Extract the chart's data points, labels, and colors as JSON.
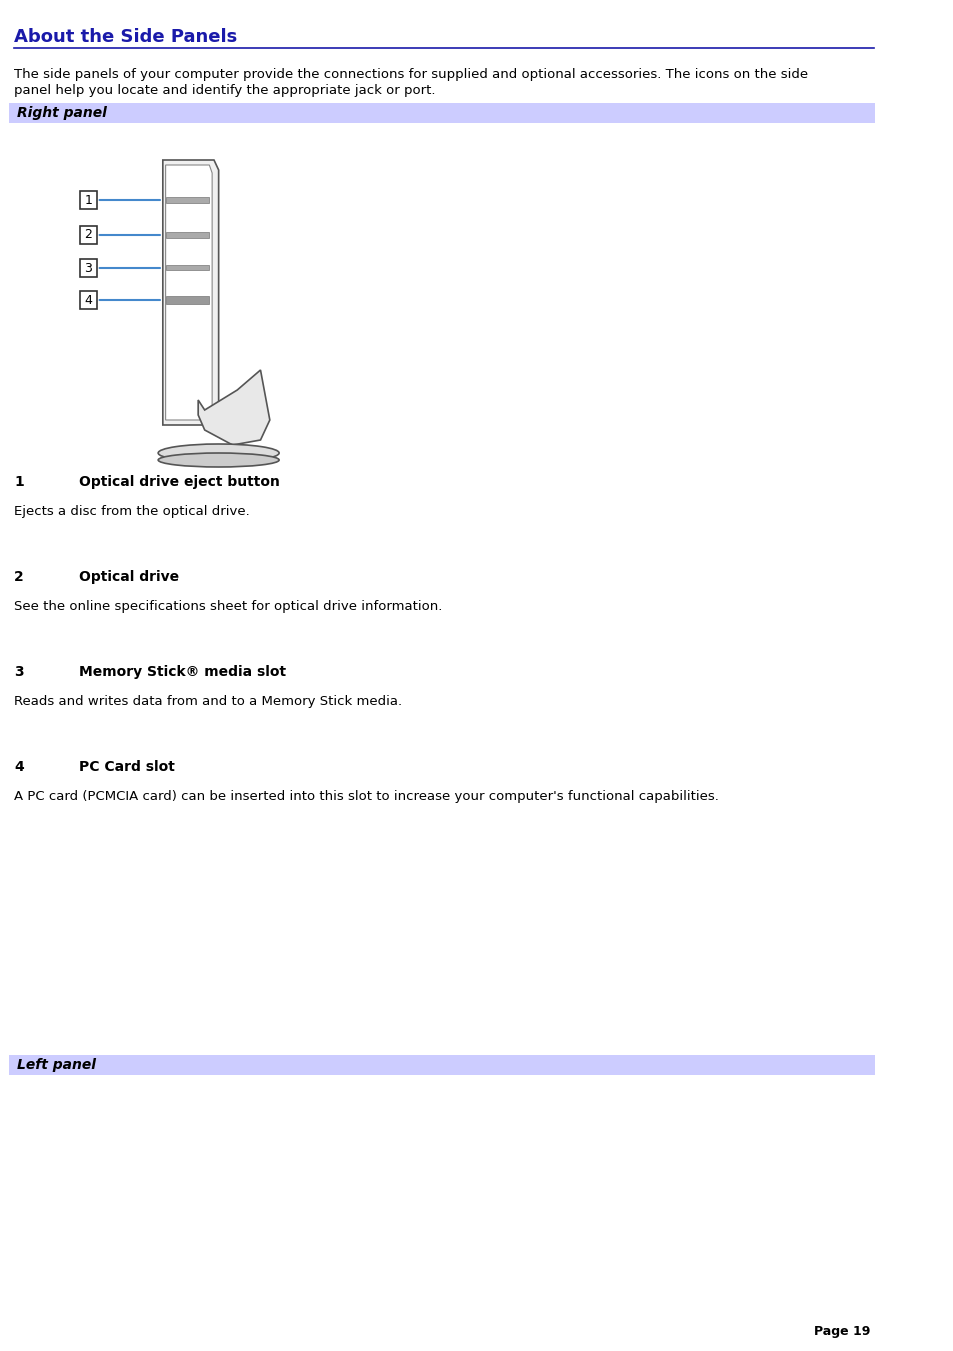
{
  "title": "About the Side Panels",
  "title_color": "#1a1aaa",
  "title_underline_color": "#1a1aaa",
  "intro_text": "The side panels of your computer provide the connections for supplied and optional accessories. The icons on the side\npanel help you locate and identify the appropriate jack or port.",
  "section_bg_color": "#ccccff",
  "section1_label": "Right panel",
  "section2_label": "Left panel",
  "items": [
    {
      "num": "1",
      "title": "Optical drive eject button",
      "desc": "Ejects a disc from the optical drive."
    },
    {
      "num": "2",
      "title": "Optical drive",
      "desc": "See the online specifications sheet for optical drive information."
    },
    {
      "num": "3",
      "title": "Memory Stick® media slot",
      "desc": "Reads and writes data from and to a Memory Stick media."
    },
    {
      "num": "4",
      "title": "PC Card slot",
      "desc": "A PC card (PCMCIA card) can be inserted into this slot to increase your computer's functional capabilities."
    }
  ],
  "page_label": "Page 19",
  "bg_color": "#ffffff",
  "text_color": "#000000",
  "body_font_size": 9.5,
  "title_font_size": 13,
  "item_num_font_size": 10,
  "item_title_font_size": 10,
  "item_desc_font_size": 9.5,
  "section_label_font_size": 10
}
